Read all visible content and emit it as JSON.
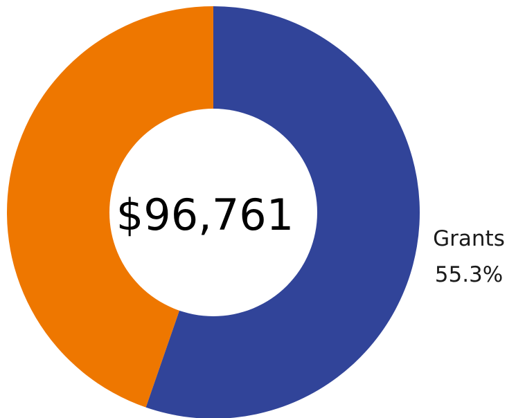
{
  "chart_data": {
    "type": "pie",
    "variant": "donut",
    "center_label": "$96,761",
    "slices": [
      {
        "label": "Grants",
        "percent": 55.3,
        "percent_label": "55.3%",
        "color": "#314499",
        "show_label": true
      },
      {
        "label": "",
        "percent": 44.7,
        "percent_label": "",
        "color": "#EE7700",
        "show_label": false
      }
    ],
    "start_angle_deg": 0,
    "direction": "clockwise",
    "legend": "none"
  }
}
